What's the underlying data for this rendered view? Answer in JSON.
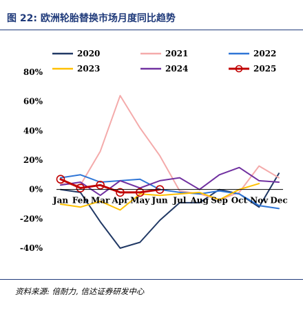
{
  "figure": {
    "title": "图 22: 欧洲轮胎替换市场月度同比趋势",
    "source": "资料来源: 倍耐力, 信达证券研发中心"
  },
  "chart_data": {
    "type": "line",
    "title": "",
    "xlabel": "",
    "ylabel": "",
    "ylim": [
      -40,
      80
    ],
    "yticks": [
      "80%",
      "60%",
      "40%",
      "20%",
      "0%",
      "-20%",
      "-40%"
    ],
    "ytick_values": [
      80,
      60,
      40,
      20,
      0,
      -20,
      -40
    ],
    "categories": [
      "Jan",
      "Feb",
      "Mar",
      "Apr",
      "May",
      "Jun",
      "Jul",
      "Aug",
      "Sep",
      "Oct",
      "Nov",
      "Dec"
    ],
    "grid": false,
    "legend_position": "top",
    "series": [
      {
        "name": "2020",
        "color": "#203864",
        "values": [
          0,
          -2,
          -22,
          -40,
          -36,
          -21,
          -9,
          -9,
          0,
          -3,
          -12,
          11
        ]
      },
      {
        "name": "2021",
        "color": "#f4aaaa",
        "values": [
          4,
          3,
          26,
          64,
          42,
          23,
          -1,
          -3,
          -7,
          -2,
          16,
          8
        ]
      },
      {
        "name": "2022",
        "color": "#2e75d6",
        "values": [
          8,
          10,
          5,
          6,
          7,
          0,
          -2,
          -3,
          -1,
          -3,
          -11,
          -13
        ]
      },
      {
        "name": "2023",
        "color": "#ffc000",
        "values": [
          -10,
          -12,
          -8,
          -14,
          -3,
          -4,
          -3,
          -2,
          -7,
          0,
          4,
          null
        ]
      },
      {
        "name": "2024",
        "color": "#7030a0",
        "values": [
          3,
          5,
          -4,
          6,
          1,
          6,
          8,
          0,
          10,
          15,
          6,
          5
        ]
      },
      {
        "name": "2025",
        "color": "#c00000",
        "marker": "circle-open",
        "values": [
          7,
          1,
          3,
          -2,
          -2,
          0,
          null,
          null,
          null,
          null,
          null,
          null
        ]
      }
    ]
  }
}
